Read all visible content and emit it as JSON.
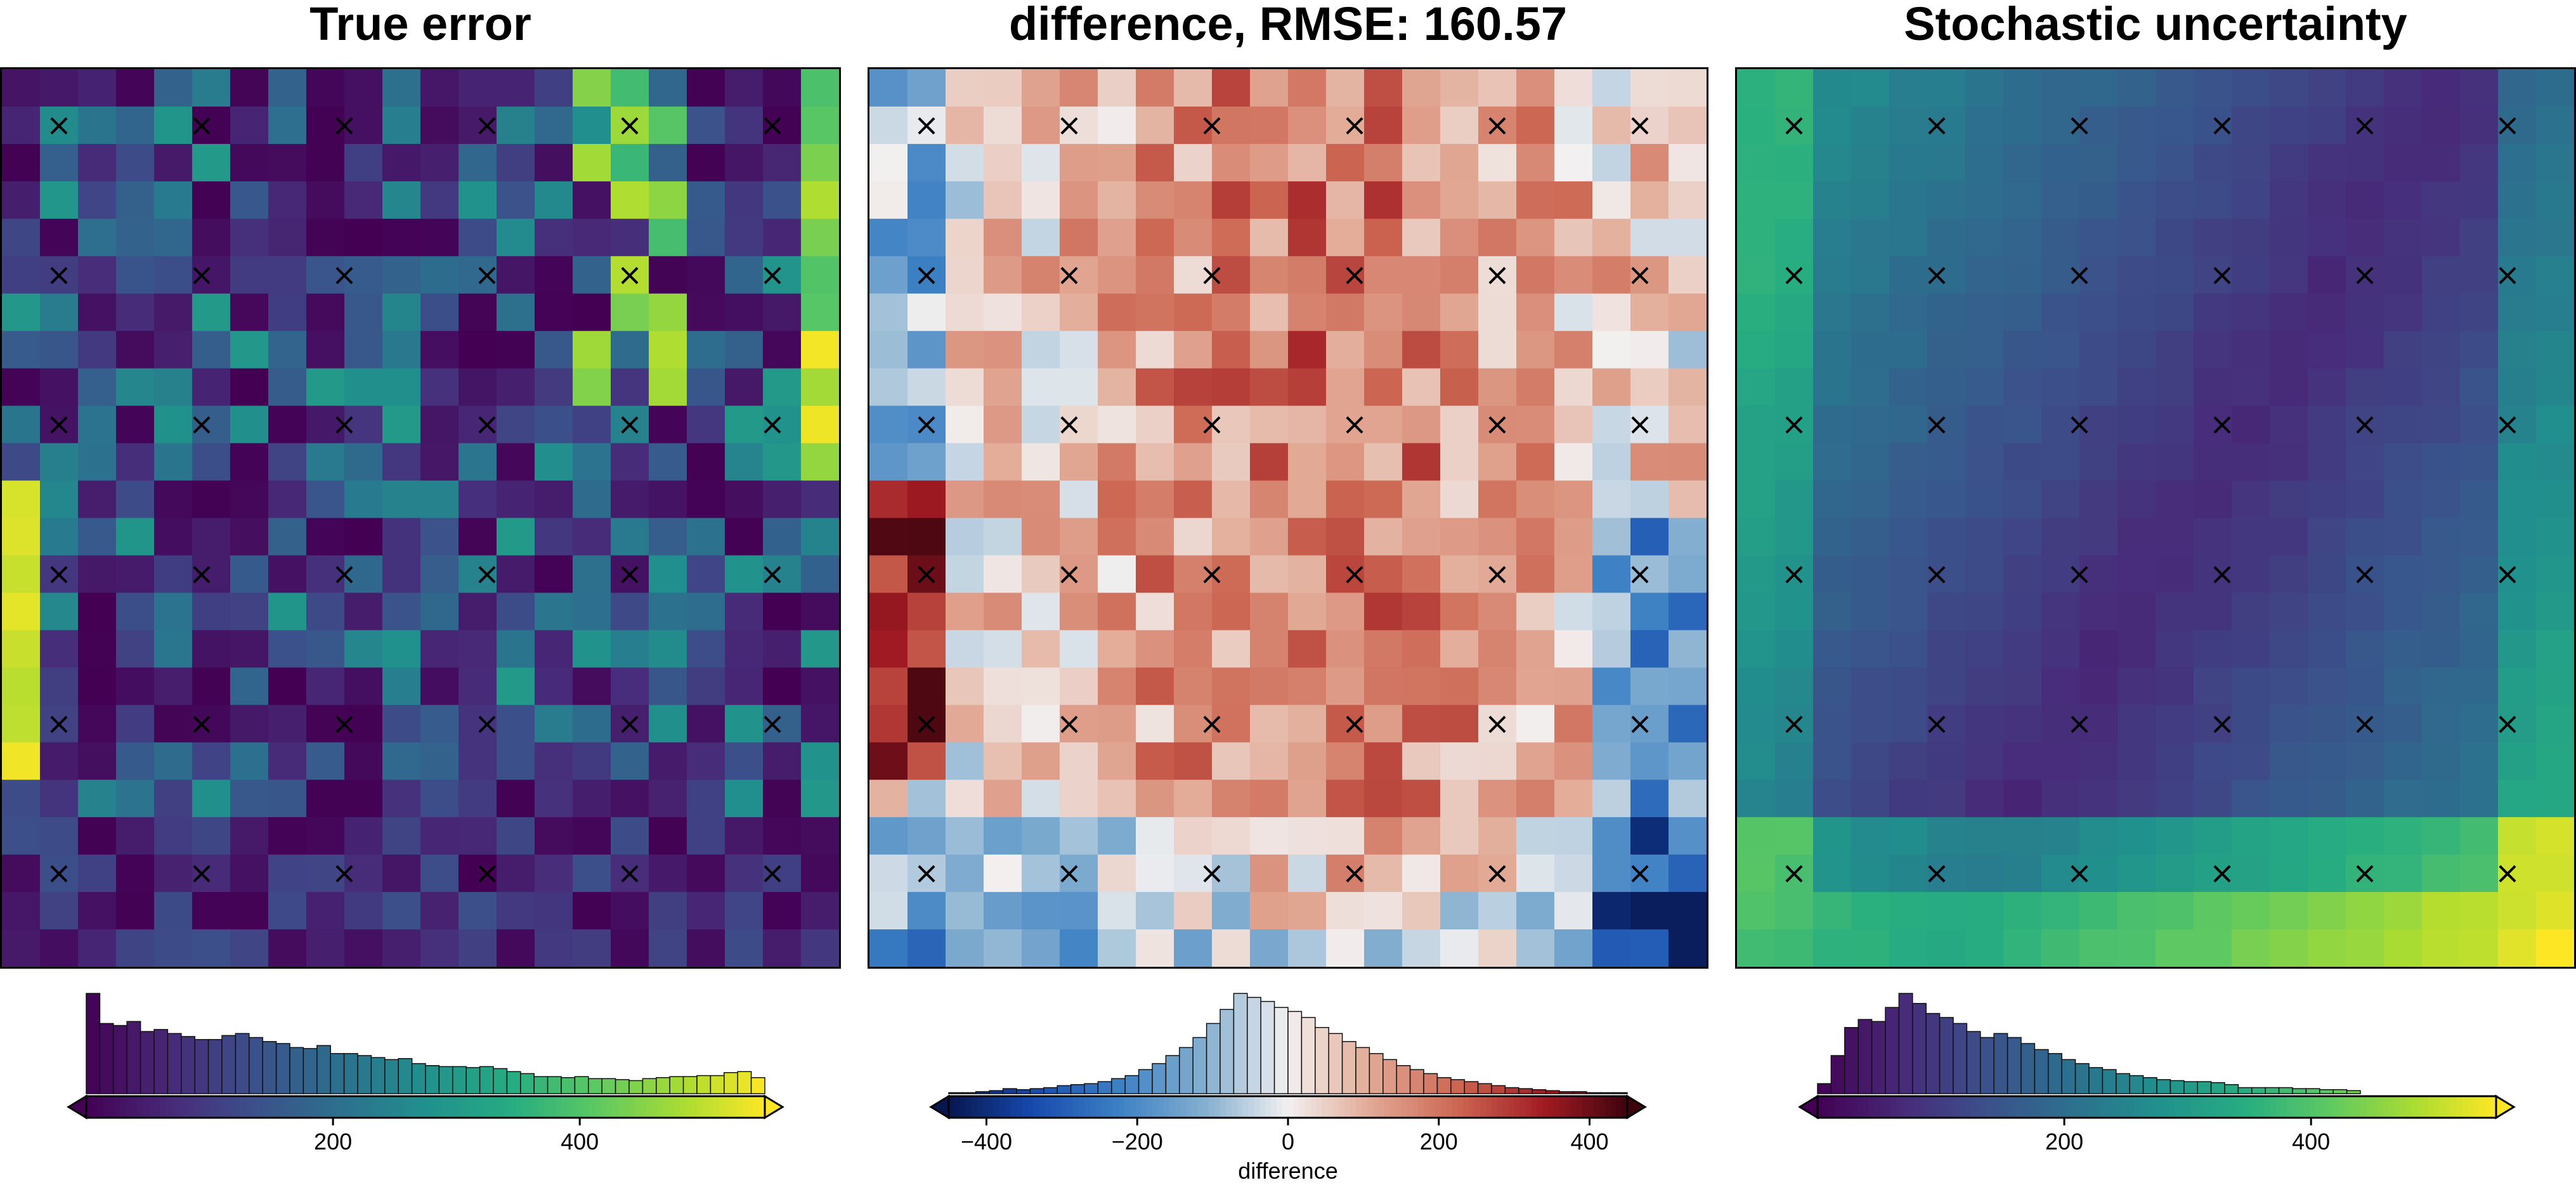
{
  "chart_data": [
    {
      "type": "heatmap",
      "title": "True error",
      "colormap": "viridis",
      "grid": {
        "rows": 24,
        "cols": 22
      },
      "seed": 11,
      "pattern": "noisy-high-left-and-upper-right",
      "color_range": [
        0,
        550
      ],
      "markers": {
        "symbol": "×",
        "rows": [
          1.5,
          5.5,
          9.5,
          13.5,
          17.5,
          21.5
        ],
        "cols": [
          1.5,
          5.25,
          9.0,
          12.75,
          16.5,
          20.25
        ]
      },
      "colorbar": {
        "ticks": [
          200,
          400
        ],
        "range": [
          0,
          550
        ],
        "xlabel": "",
        "histogram": [
          100,
          70,
          68,
          72,
          62,
          64,
          60,
          57,
          54,
          54,
          58,
          60,
          56,
          52,
          50,
          46,
          45,
          48,
          40,
          40,
          38,
          36,
          34,
          35,
          30,
          28,
          27,
          27,
          26,
          27,
          25,
          22,
          20,
          17,
          17,
          16,
          17,
          15,
          15,
          14,
          13,
          15,
          16,
          17,
          17,
          18,
          18,
          21,
          22,
          16
        ]
      }
    },
    {
      "type": "heatmap",
      "title": "difference, RMSE: 160.57",
      "colormap": "diverging-blue-white-red",
      "grid": {
        "rows": 24,
        "cols": 22
      },
      "seed": 23,
      "pattern": "positive-center-negative-edges",
      "color_range": [
        -450,
        450
      ],
      "markers": {
        "symbol": "×",
        "rows": [
          1.5,
          5.5,
          9.5,
          13.5,
          17.5,
          21.5
        ],
        "cols": [
          1.5,
          5.25,
          9.0,
          12.75,
          16.5,
          20.25
        ]
      },
      "colorbar": {
        "ticks": [
          -400,
          -200,
          0,
          200,
          400
        ],
        "range": [
          -450,
          450
        ],
        "xlabel": "difference",
        "histogram": [
          1,
          1,
          2,
          3,
          5,
          4,
          5,
          6,
          8,
          9,
          10,
          12,
          15,
          18,
          24,
          30,
          38,
          46,
          56,
          70,
          84,
          100,
          96,
          92,
          86,
          82,
          76,
          66,
          60,
          52,
          46,
          40,
          34,
          28,
          24,
          20,
          16,
          14,
          12,
          10,
          8,
          6,
          5,
          4,
          3,
          2,
          2,
          1,
          1,
          1
        ]
      }
    },
    {
      "type": "heatmap",
      "title": "Stochastic uncertainty",
      "colormap": "viridis",
      "grid": {
        "rows": 24,
        "cols": 22
      },
      "seed": 7,
      "pattern": "smooth-low-diagonal-high-edges",
      "color_range": [
        0,
        550
      ],
      "markers": {
        "symbol": "×",
        "rows": [
          1.5,
          5.5,
          9.5,
          13.5,
          17.5,
          21.5
        ],
        "cols": [
          1.5,
          5.25,
          9.0,
          12.75,
          16.5,
          20.25
        ]
      },
      "colorbar": {
        "ticks": [
          200,
          400
        ],
        "range": [
          0,
          550
        ],
        "xlabel": "",
        "histogram": [
          10,
          38,
          66,
          74,
          72,
          86,
          100,
          90,
          80,
          76,
          70,
          62,
          56,
          60,
          56,
          50,
          44,
          40,
          34,
          30,
          26,
          24,
          20,
          18,
          16,
          14,
          13,
          12,
          12,
          11,
          9,
          6,
          6,
          6,
          6,
          5,
          5,
          4,
          4,
          3,
          0,
          0,
          0,
          0,
          0,
          0,
          0,
          0,
          0,
          0
        ]
      }
    }
  ]
}
